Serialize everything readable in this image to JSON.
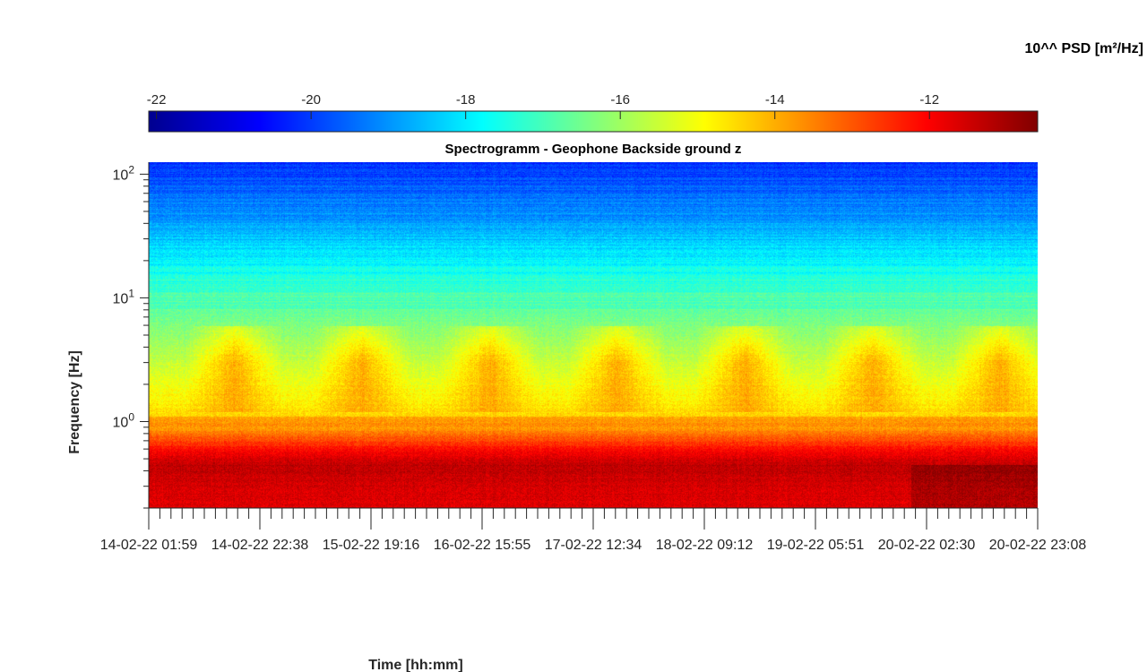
{
  "chart_data": {
    "type": "heatmap",
    "title": "Spectrogramm - Geophone Backside ground z",
    "xlabel": "Time [hh:mm]",
    "ylabel": "Frequency [Hz]",
    "x_tick_labels": [
      "14-02-22 01:59",
      "14-02-22 22:38",
      "15-02-22 19:16",
      "16-02-22 15:55",
      "17-02-22 12:34",
      "18-02-22 09:12",
      "19-02-22 05:51",
      "20-02-22 02:30",
      "20-02-22 23:08"
    ],
    "x_range": [
      "14-02-22 01:59",
      "20-02-22 23:08"
    ],
    "y_scale": "log",
    "y_range": [
      0.2,
      125
    ],
    "y_ticks": [
      {
        "base": "10",
        "exp": "0",
        "value": 1
      },
      {
        "base": "10",
        "exp": "1",
        "value": 10
      },
      {
        "base": "10",
        "exp": "2",
        "value": 100
      }
    ],
    "colorbar": {
      "label": "10^^ PSD [m²/Hz]",
      "location": "top",
      "colormap": "jet",
      "range": [
        -22.1,
        -10.6
      ],
      "ticks": [
        -22,
        -20,
        -18,
        -16,
        -14,
        -12
      ]
    },
    "dominant_features": [
      {
        "description_band": "low",
        "freq_range_hz": [
          0.2,
          0.8
        ],
        "log10_psd": -11.8
      },
      {
        "description_band": "mid",
        "freq_range_hz": [
          1,
          10
        ],
        "log10_psd": -15.5
      },
      {
        "description_band": "daily bursts",
        "freq_range_hz": [
          2,
          5
        ],
        "log10_psd": -13.5
      },
      {
        "description_band": "high",
        "freq_range_hz": [
          40,
          125
        ],
        "log10_psd": -19.5
      }
    ],
    "grid": false
  }
}
